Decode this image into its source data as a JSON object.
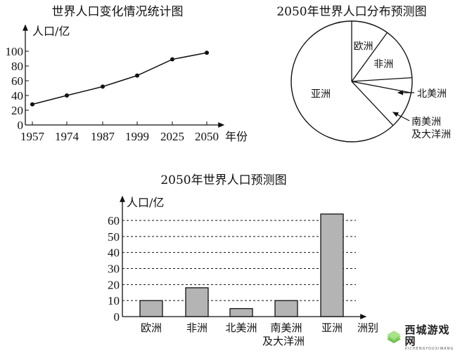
{
  "chart_data": [
    {
      "type": "line",
      "title": "世界人口变化情况统计图",
      "xlabel": "年份",
      "ylabel": "人口/亿",
      "x": [
        "1957",
        "1974",
        "1987",
        "1999",
        "2025",
        "2050"
      ],
      "values": [
        28,
        40,
        52,
        67,
        89,
        98
      ],
      "yticks": [
        "0",
        "20",
        "40",
        "60",
        "80",
        "100"
      ],
      "ylim": [
        0,
        100
      ],
      "grid": false
    },
    {
      "type": "pie",
      "title": "2050年世界人口分布预测图",
      "categories": [
        "欧洲",
        "非洲",
        "北美洲",
        "南美洲及大洋洲",
        "亚洲"
      ],
      "values": [
        10,
        14,
        4,
        10,
        62
      ],
      "labels_outside": [
        "北美洲",
        "南美洲",
        "及大洋洲"
      ]
    },
    {
      "type": "bar",
      "title": "2050年世界人口预测图",
      "xlabel": "洲别",
      "ylabel": "人口/亿",
      "categories": [
        "欧洲",
        "非洲",
        "北美洲",
        "南美洲及大洋洲",
        "亚洲"
      ],
      "category_lines": [
        [
          "欧洲"
        ],
        [
          "非洲"
        ],
        [
          "北美洲"
        ],
        [
          "南美洲",
          "及大洋洲"
        ],
        [
          "亚洲"
        ]
      ],
      "values": [
        10,
        18,
        5,
        10,
        64
      ],
      "yticks": [
        "0",
        "10",
        "20",
        "30",
        "40",
        "50",
        "60"
      ],
      "ylim": [
        0,
        60
      ],
      "grid": "dashed horizontal",
      "bar_color": "#b4b4b4"
    }
  ],
  "watermark": {
    "title": "西城游戏网",
    "subtitle": "XICHENGYOUXIWANG"
  }
}
